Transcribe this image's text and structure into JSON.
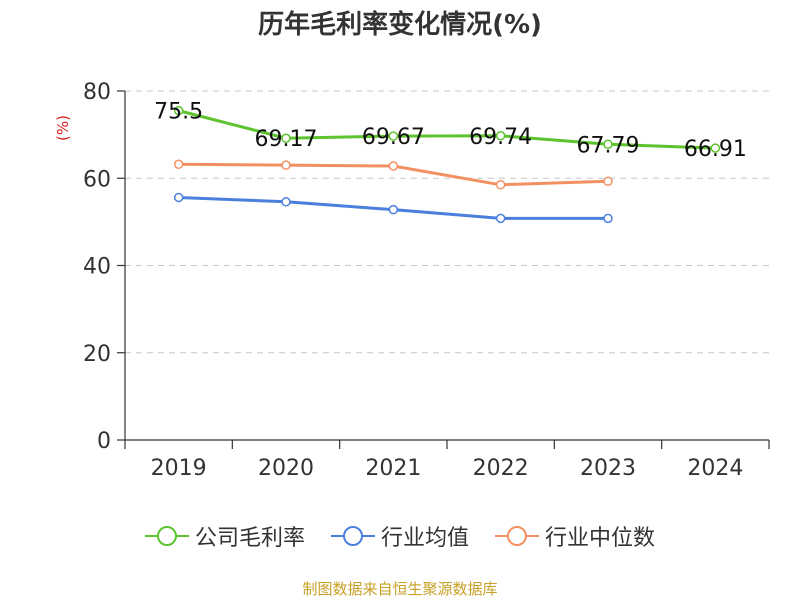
{
  "title": "历年毛利率变化情况(%)",
  "source": "制图数据来自恒生聚源数据库",
  "chart_data": {
    "type": "line",
    "title": "历年毛利率变化情况(%)",
    "ylabel": "(%)",
    "xlabel": "",
    "categories": [
      "2019",
      "2020",
      "2021",
      "2022",
      "2023",
      "2024"
    ],
    "ylim": [
      0,
      80
    ],
    "yticks": [
      "0",
      "20",
      "40",
      "60",
      "80"
    ],
    "grid": true,
    "legend_position": "bottom",
    "series": [
      {
        "name": "公司毛利率",
        "color": "#5dc32e",
        "values": [
          75.5,
          69.17,
          69.67,
          69.74,
          67.79,
          66.91
        ],
        "labels": [
          "75.5",
          "69.17",
          "69.67",
          "69.74",
          "67.79",
          "66.91"
        ]
      },
      {
        "name": "行业均值",
        "color": "#4a7fdd",
        "values": [
          55.6,
          54.6,
          52.8,
          50.8,
          50.8,
          null
        ]
      },
      {
        "name": "行业中位数",
        "color": "#f39062",
        "values": [
          63.2,
          63.0,
          62.8,
          58.5,
          59.3,
          null
        ]
      }
    ]
  }
}
